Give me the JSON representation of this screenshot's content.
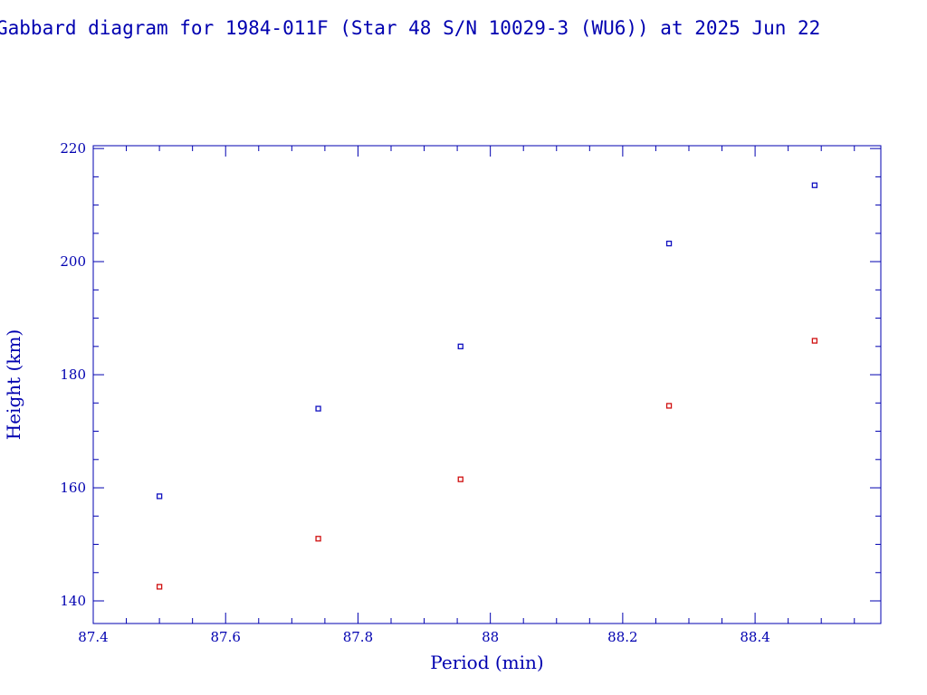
{
  "chart_data": {
    "type": "scatter",
    "title": "Gabbard diagram for 1984-011F (Star 48 S/N 10029-3 (WU6)) at 2025 Jun 22",
    "xlabel": "Period (min)",
    "ylabel": "Height (km)",
    "xlim": [
      87.4,
      88.59
    ],
    "ylim": [
      136,
      220.5
    ],
    "x_ticks": [
      87.4,
      87.6,
      87.8,
      88,
      88.2,
      88.4
    ],
    "x_tick_labels": [
      "87.4",
      "87.6",
      "87.8",
      "88",
      "88.2",
      "88.4"
    ],
    "y_ticks": [
      140,
      160,
      180,
      200,
      220
    ],
    "y_tick_labels": [
      "140",
      "160",
      "180",
      "200",
      "220"
    ],
    "grid": false,
    "series": [
      {
        "color": "#1010c0",
        "x": [
          87.5,
          87.74,
          87.955,
          88.27,
          88.49
        ],
        "y": [
          158.5,
          174,
          185,
          203.2,
          213.5
        ]
      },
      {
        "color": "#d01010",
        "x": [
          87.5,
          87.74,
          87.955,
          88.27,
          88.49
        ],
        "y": [
          142.5,
          151,
          161.5,
          174.5,
          186
        ]
      }
    ]
  }
}
